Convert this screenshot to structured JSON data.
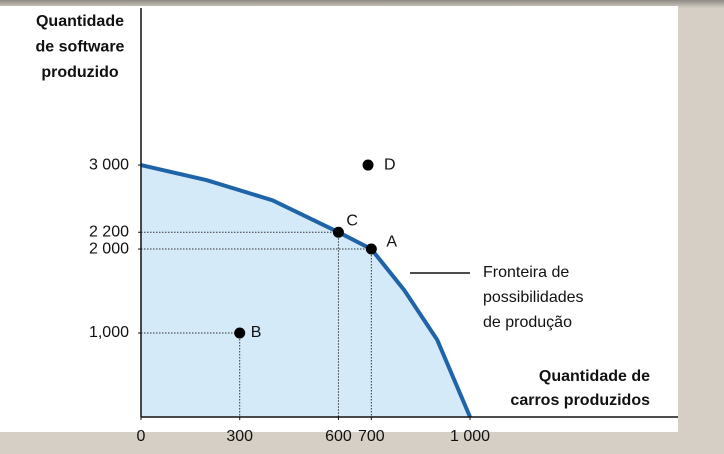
{
  "chart_data": {
    "type": "line",
    "ylabel": [
      "Quantidade",
      "de software",
      "produzido"
    ],
    "xlabel": [
      "Quantidade de",
      "carros produzidos"
    ],
    "annotation": [
      "Fronteira de",
      "possibilidades",
      "de produção"
    ],
    "xlim": [
      0,
      1632
    ],
    "ylim": [
      0,
      4870
    ],
    "xticks": [
      0,
      300,
      600,
      700,
      {
        "value": 1000,
        "label": "1 000"
      }
    ],
    "yticks": [
      {
        "value": 1000,
        "label": "1,000"
      },
      {
        "value": 2000,
        "label": "2 000"
      },
      {
        "value": 2200,
        "label": "2 200"
      },
      {
        "value": 3000,
        "label": "3 000"
      }
    ],
    "series": [
      {
        "color": "#1f63a8",
        "fill": "#d5eaf8",
        "x": [
          0,
          200,
          300,
          400,
          600,
          700,
          800,
          900,
          1000
        ],
        "values": [
          3000,
          2820,
          2700,
          2580,
          2200,
          2000,
          1510,
          920,
          0
        ]
      }
    ],
    "points": [
      {
        "label": "A",
        "x": 700,
        "y": 2000
      },
      {
        "label": "B",
        "x": 300,
        "y": 1000
      },
      {
        "label": "C",
        "x": 600,
        "y": 2200
      },
      {
        "label": "D",
        "x": 690,
        "y": 3000
      }
    ]
  }
}
